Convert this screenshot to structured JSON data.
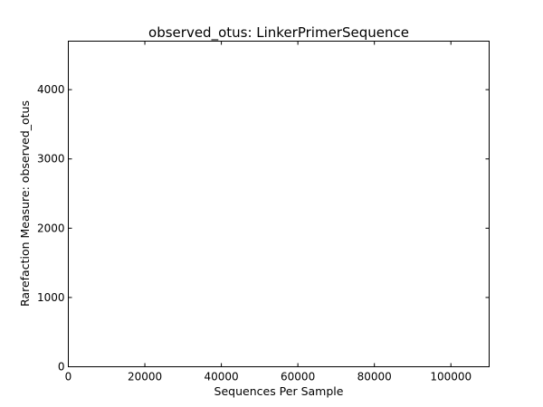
{
  "chart_data": {
    "type": "line",
    "title": "observed_otus: LinkerPrimerSequence",
    "xlabel": "Sequences Per Sample",
    "ylabel": "Rarefaction Measure: observed_otus",
    "xlim": [
      0,
      110000
    ],
    "ylim": [
      0,
      4700
    ],
    "xticks": [
      0,
      20000,
      40000,
      60000,
      80000,
      100000
    ],
    "yticks": [
      0,
      1000,
      2000,
      3000,
      4000
    ],
    "xtick_labels": [
      "0",
      "20000",
      "40000",
      "60000",
      "80000",
      "100000"
    ],
    "ytick_labels": [
      "0",
      "1000",
      "2000",
      "3000",
      "4000"
    ],
    "series": [],
    "grid": false,
    "legend": "none"
  }
}
